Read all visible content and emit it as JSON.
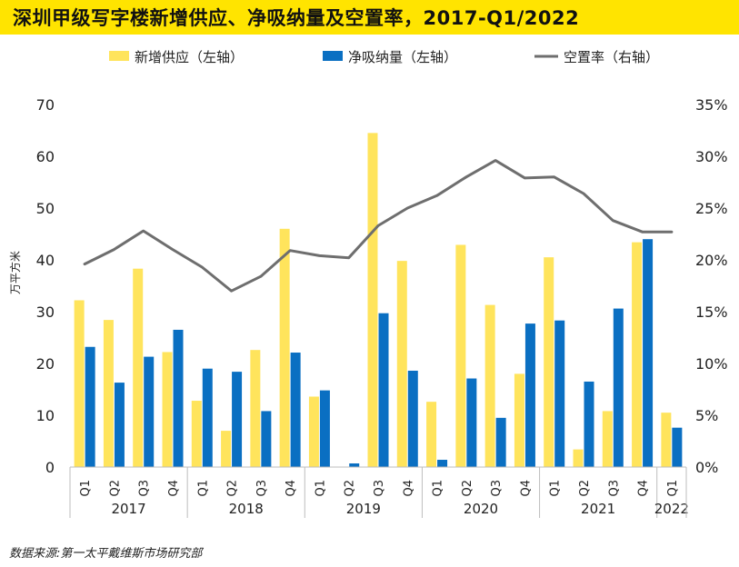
{
  "title": "深圳甲级写字楼新增供应、净吸纳量及空置率，2017-Q1/2022",
  "source": "数据来源:第一太平戴维斯市场研究部",
  "colors": {
    "supply": "#FFE45C",
    "absorption": "#0A6FC2",
    "vacancy": "#6E6E6E",
    "title_bar": "#FFE400"
  },
  "chart_data": {
    "type": "bar",
    "title": "深圳甲级写字楼新增供应、净吸纳量及空置率，2017-Q1/2022",
    "ylabel": "万平方米",
    "ylim": [
      0,
      70
    ],
    "y_ticks": [
      "0",
      "10",
      "20",
      "30",
      "40",
      "50",
      "60",
      "70"
    ],
    "y2lim": [
      0,
      35
    ],
    "y2_ticks": [
      "0%",
      "5%",
      "10%",
      "15%",
      "20%",
      "25%",
      "30%",
      "35%"
    ],
    "categories": [
      "Q1",
      "Q2",
      "Q3",
      "Q4",
      "Q1",
      "Q2",
      "Q3",
      "Q4",
      "Q1",
      "Q2",
      "Q3",
      "Q4",
      "Q1",
      "Q2",
      "Q3",
      "Q4",
      "Q1",
      "Q2",
      "Q3",
      "Q4",
      "Q1"
    ],
    "years": [
      {
        "label": "2017",
        "count": 4
      },
      {
        "label": "2018",
        "count": 4
      },
      {
        "label": "2019",
        "count": 4
      },
      {
        "label": "2020",
        "count": 4
      },
      {
        "label": "2021",
        "count": 4
      },
      {
        "label": "2022",
        "count": 1
      }
    ],
    "series": [
      {
        "name": "新增供应（左轴）",
        "type": "bar",
        "axis": "left",
        "values": [
          32.2,
          28.4,
          38.3,
          22.2,
          12.8,
          7.0,
          22.6,
          46.0,
          13.6,
          0,
          64.5,
          39.8,
          12.6,
          42.9,
          31.3,
          18.0,
          40.5,
          3.4,
          10.8,
          43.4,
          10.5
        ]
      },
      {
        "name": "净吸纳量（左轴）",
        "type": "bar",
        "axis": "left",
        "values": [
          23.2,
          16.3,
          21.3,
          26.5,
          19.0,
          18.4,
          10.8,
          22.1,
          14.8,
          0.7,
          29.7,
          18.6,
          1.4,
          17.1,
          9.5,
          27.7,
          28.3,
          16.5,
          30.6,
          44.0,
          7.6
        ]
      },
      {
        "name": "空置率（右轴）",
        "type": "line",
        "axis": "right",
        "values": [
          19.6,
          21.0,
          22.8,
          21.0,
          19.3,
          17.0,
          18.4,
          20.9,
          20.4,
          20.2,
          23.3,
          25.0,
          26.2,
          28.0,
          29.6,
          27.9,
          28.0,
          26.4,
          23.8,
          22.7,
          22.7
        ]
      }
    ],
    "legend_position": "top"
  }
}
